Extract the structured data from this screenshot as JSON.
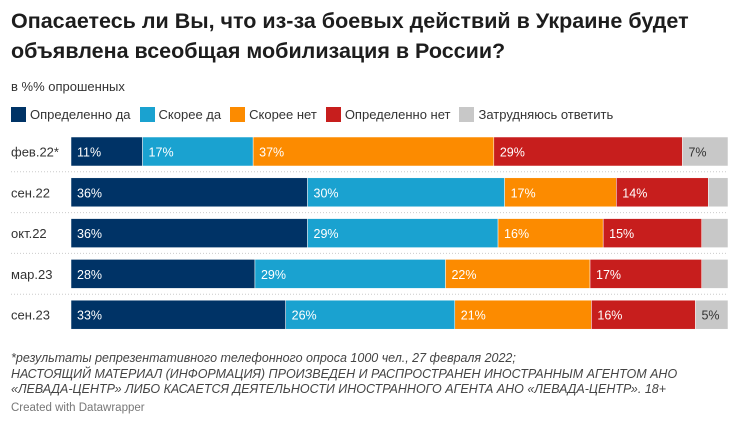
{
  "header": {
    "title": "Опасаетесь ли Вы, что из-за боевых действий в Украине будет объявлена всеобщая мобилизация в России?",
    "subtitle": "в %% опрошенных"
  },
  "chart_data": {
    "type": "bar",
    "orientation": "horizontal",
    "stacked": true,
    "categories": [
      "фев.22*",
      "сен.22",
      "окт.22",
      "мар.23",
      "сен.23"
    ],
    "series": [
      {
        "name": "Определенно да",
        "color": "#003366",
        "values": [
          11,
          36,
          36,
          28,
          33
        ]
      },
      {
        "name": "Скорее да",
        "color": "#1aa2d0",
        "values": [
          17,
          30,
          29,
          29,
          26
        ]
      },
      {
        "name": "Скорее нет",
        "color": "#fc8b00",
        "values": [
          37,
          17,
          16,
          22,
          21
        ]
      },
      {
        "name": "Определенно нет",
        "color": "#c71e1d",
        "values": [
          29,
          14,
          15,
          17,
          16
        ]
      },
      {
        "name": "Затрудняюсь ответить",
        "color": "#c8c8c8",
        "values": [
          7,
          3,
          4,
          4,
          5
        ]
      }
    ],
    "value_suffix": "%",
    "xlim": [
      0,
      100
    ],
    "legend": "top"
  },
  "footer": {
    "note": "*результаты репрезентативного телефонного опроса 1000 чел., 27 февраля 2022;",
    "disclaimer": "НАСТОЯЩИЙ МАТЕРИАЛ (ИНФОРМАЦИЯ) ПРОИЗВЕДЕН И РАСПРОСТРАНЕН ИНОСТРАННЫМ АГЕНТОМ АНО «ЛЕВАДА-ЦЕНТР» ЛИБО КАСАЕТСЯ ДЕЯТЕЛЬНОСТИ ИНОСТРАННОГО АГЕНТА АНО «ЛЕВАДА-ЦЕНТР». 18+",
    "credit": "Created with Datawrapper"
  }
}
